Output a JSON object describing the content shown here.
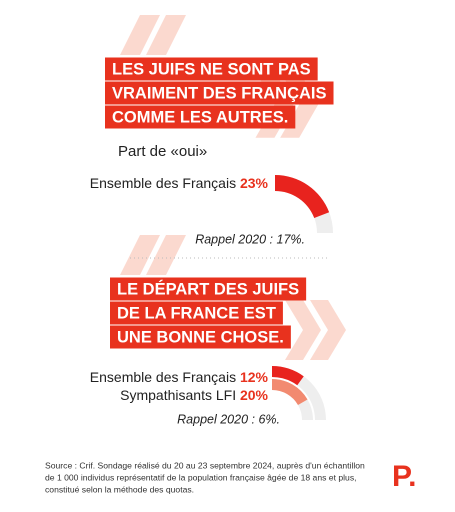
{
  "chart_data": [
    {
      "type": "gauge",
      "title": [
        "LES JUIFS NE SONT PAS",
        "VRAIMENT DES FRANÇAIS",
        "COMME LES AUTRES."
      ],
      "subtitle": "Part de «oui»",
      "ylim": [
        0,
        30
      ],
      "series": [
        {
          "name": "Ensemble des Français",
          "color": "#e8231e",
          "values": [
            23
          ],
          "value_labels": [
            "23%"
          ]
        }
      ],
      "annotation": "Rappel 2020 : 17%."
    },
    {
      "type": "gauge",
      "title": [
        "LE DÉPART DES JUIFS",
        "DE LA FRANCE EST",
        "UNE BONNE CHOSE."
      ],
      "ylim": [
        0,
        30
      ],
      "series": [
        {
          "name": "Ensemble des Français",
          "color": "#e8231e",
          "values": [
            12
          ],
          "value_labels": [
            "12%"
          ]
        },
        {
          "name": "Sympathisants LFI",
          "color": "#f28a70",
          "values": [
            20
          ],
          "value_labels": [
            "20%"
          ]
        }
      ],
      "annotation": "Rappel 2020 : 6%."
    }
  ],
  "source": [
    "Source : Crif. Sondage réalisé du 20 au 23 septembre 2024, auprès d'un échantillon",
    "de 1 000 individus représentatif de la population française âgée de 18 ans et plus,",
    "constitué selon la méthode des quotas."
  ],
  "logo": "P."
}
